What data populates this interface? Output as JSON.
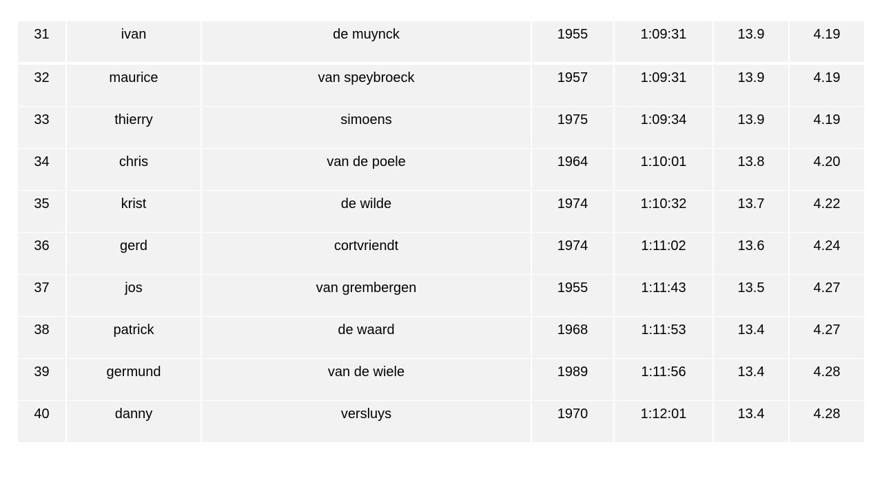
{
  "rows": [
    [
      "31",
      "ivan",
      "de muynck",
      "1955",
      "1:09:31",
      "13.9",
      "4.19"
    ],
    [
      "32",
      "maurice",
      "van speybroeck",
      "1957",
      "1:09:31",
      "13.9",
      "4.19"
    ],
    [
      "33",
      "thierry",
      "simoens",
      "1975",
      "1:09:34",
      "13.9",
      "4.19"
    ],
    [
      "34",
      "chris",
      "van de poele",
      "1964",
      "1:10:01",
      "13.8",
      "4.20"
    ],
    [
      "35",
      "krist",
      "de wilde",
      "1974",
      "1:10:32",
      "13.7",
      "4.22"
    ],
    [
      "36",
      "gerd",
      "cortvriendt",
      "1974",
      "1:11:02",
      "13.6",
      "4.24"
    ],
    [
      "37",
      "jos",
      "van grembergen",
      "1955",
      "1:11:43",
      "13.5",
      "4.27"
    ],
    [
      "38",
      "patrick",
      "de waard",
      "1968",
      "1:11:53",
      "13.4",
      "4.27"
    ],
    [
      "39",
      "germund",
      "van de wiele",
      "1989",
      "1:11:56",
      "13.4",
      "4.28"
    ],
    [
      "40",
      "danny",
      "versluys",
      "1970",
      "1:12:01",
      "13.4",
      "4.28"
    ]
  ]
}
